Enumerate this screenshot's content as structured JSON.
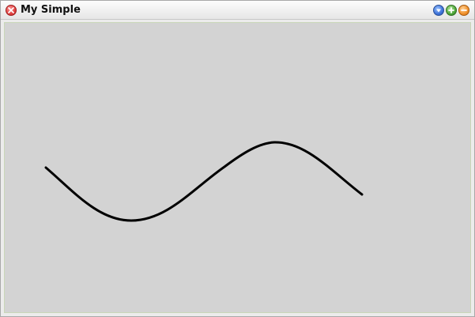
{
  "window": {
    "title": "My Simple"
  },
  "controls": {
    "close": "close-icon",
    "menu": "chevron-down-icon",
    "maximize": "plus-icon",
    "minimize": "minus-icon"
  },
  "colors": {
    "client_background": "#d3d3d3",
    "curve": "#000000",
    "close": "#e04040",
    "menu": "#3d72d8",
    "maximize": "#4ea83a",
    "minimize": "#f0902a"
  }
}
